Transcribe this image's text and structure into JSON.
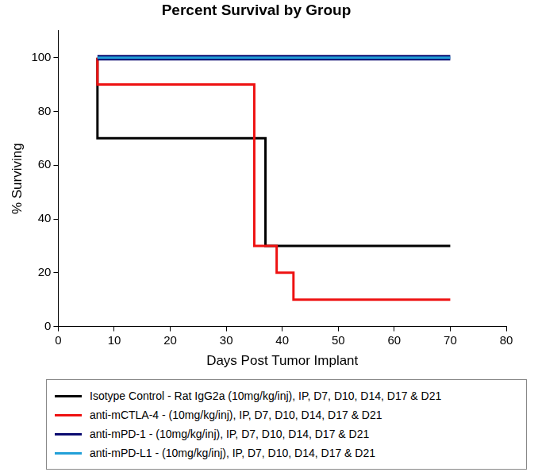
{
  "chart_data": {
    "type": "step",
    "title": "Percent Survival by Group",
    "x_label": "Days Post Tumor Implant",
    "y_label": "% Surviving",
    "xlim": [
      0,
      80
    ],
    "xticks": [
      0,
      10,
      20,
      30,
      40,
      50,
      60,
      70,
      80
    ],
    "ylim": [
      0,
      110
    ],
    "yticks": [
      0,
      20,
      40,
      60,
      80,
      100
    ],
    "grid": false,
    "legend": "bottom",
    "series": [
      {
        "name": "Isotype Control - Rat IgG2a (10mg/kg/inj), IP, D7, D10, D14, D17 & D21",
        "color": "#000000",
        "x": [
          7,
          37,
          39,
          70
        ],
        "values": [
          100,
          70,
          30,
          30
        ]
      },
      {
        "name": "anti-mCTLA-4 - (10mg/kg/inj), IP, D7, D10, D14, D17 & D21",
        "color": "#ee1111",
        "x": [
          7,
          35,
          39,
          42,
          44,
          70
        ],
        "values": [
          100,
          90,
          30,
          20,
          10,
          10
        ]
      },
      {
        "name": "anti-mPD-1 - (10mg/kg/inj), IP, D7, D10, D14, D17 & D21",
        "color": "#0a0a70",
        "x": [
          7,
          70
        ],
        "values": [
          100,
          100
        ]
      },
      {
        "name": "anti-mPD-L1 - (10mg/kg/inj), IP, D7, D10, D14, D17 & D21",
        "color": "#22a0d8",
        "x": [
          7,
          70
        ],
        "values": [
          100,
          100
        ]
      }
    ]
  }
}
